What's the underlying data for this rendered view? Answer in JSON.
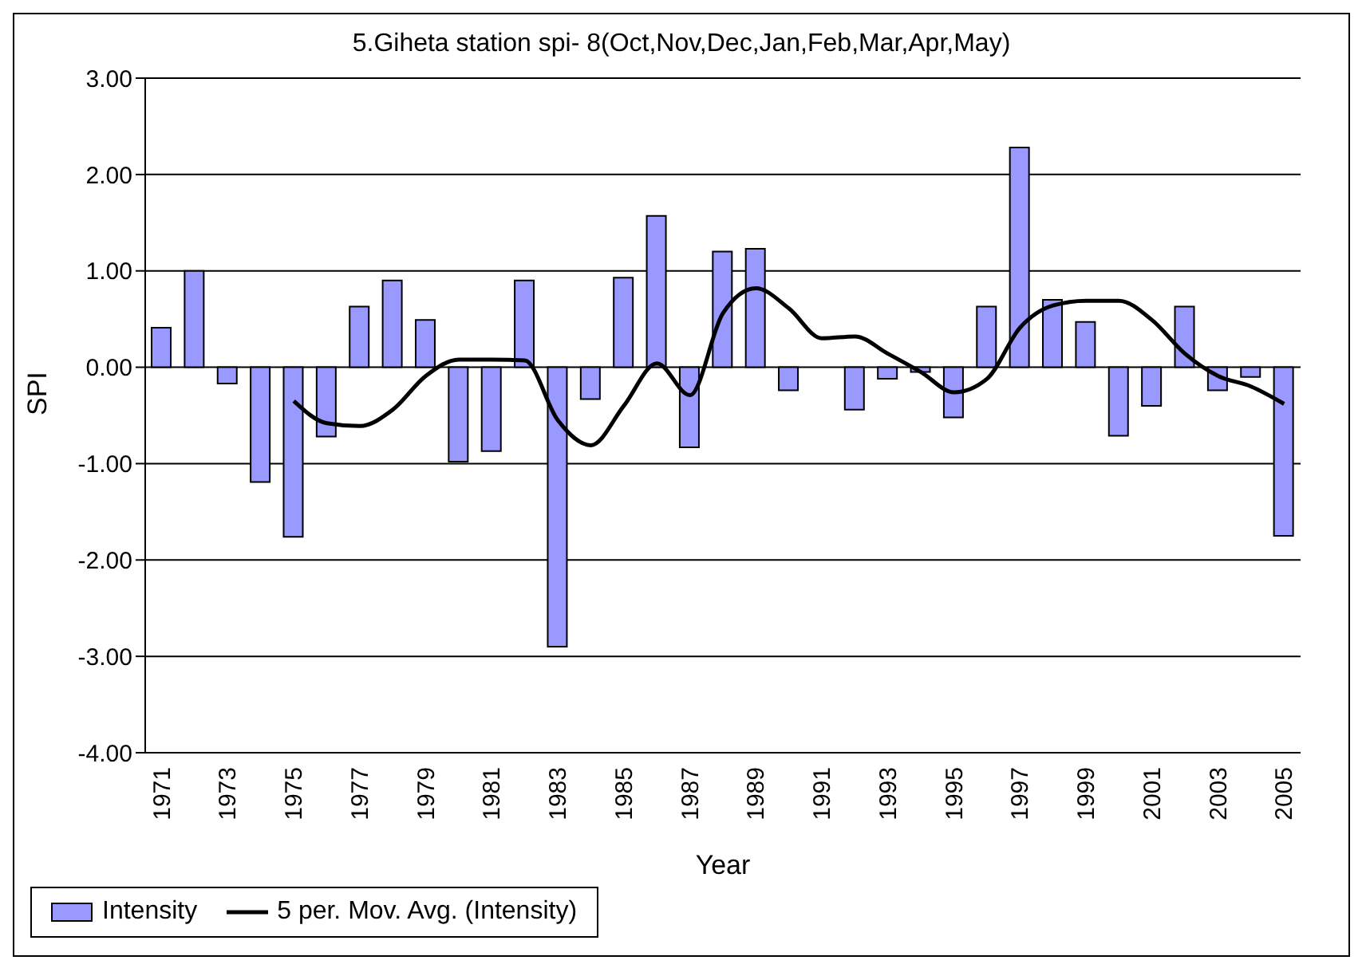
{
  "chart_data": {
    "type": "bar",
    "title": "5.Giheta station spi- 8(Oct,Nov,Dec,Jan,Feb,Mar,Apr,May)",
    "xlabel": "Year",
    "ylabel": "SPI",
    "categories": [
      "1971",
      null,
      "1973",
      null,
      "1975",
      null,
      "1977",
      null,
      "1979",
      null,
      "1981",
      null,
      "1983",
      null,
      "1985",
      null,
      "1987",
      null,
      "1989",
      null,
      "1991",
      null,
      "1993",
      null,
      "1995",
      null,
      "1997",
      null,
      "1999",
      null,
      "2001",
      null,
      "2003",
      null,
      "2005"
    ],
    "series": [
      {
        "name": "Intensity",
        "color": "#9999ff",
        "values": [
          0.41,
          1.0,
          -0.17,
          -1.19,
          -1.76,
          -0.72,
          0.63,
          0.9,
          0.49,
          -0.98,
          -0.87,
          0.9,
          -2.9,
          -0.33,
          0.93,
          1.57,
          -0.83,
          1.2,
          1.23,
          -0.24,
          0,
          -0.44,
          -0.12,
          -0.05,
          -0.52,
          0.63,
          2.28,
          0.7,
          0.47,
          -0.71,
          -0.4,
          0.63,
          -0.24,
          -0.1,
          -1.75
        ]
      },
      {
        "name": "5 per. Mov. Avg. (Intensity)",
        "type": "line",
        "color": "#000000",
        "values": [
          null,
          null,
          null,
          null,
          -0.35,
          -0.58,
          -0.61,
          -0.44,
          -0.09,
          0.08,
          0.08,
          0.07,
          -0.55,
          -0.81,
          -0.4,
          0.04,
          -0.29,
          0.56,
          0.82,
          0.61,
          0.3,
          0.32,
          0.14,
          -0.05,
          -0.26,
          -0.12,
          0.41,
          0.64,
          0.69,
          0.69,
          0.49,
          0.14,
          -0.09,
          -0.2,
          -0.38
        ]
      }
    ],
    "ylim": [
      -4,
      3
    ],
    "yticks": [
      {
        "value": -4,
        "label": "-4.00"
      },
      {
        "value": -3,
        "label": "-3.00"
      },
      {
        "value": -2,
        "label": "-2.00"
      },
      {
        "value": -1,
        "label": "-1.00"
      },
      {
        "value": 0,
        "label": "0.00"
      },
      {
        "value": 1,
        "label": "1.00"
      },
      {
        "value": 2,
        "label": "2.00"
      },
      {
        "value": 3,
        "label": "3.00"
      }
    ],
    "grid": "y",
    "legend": "bottom",
    "marker": "none",
    "line_style": "solid"
  }
}
